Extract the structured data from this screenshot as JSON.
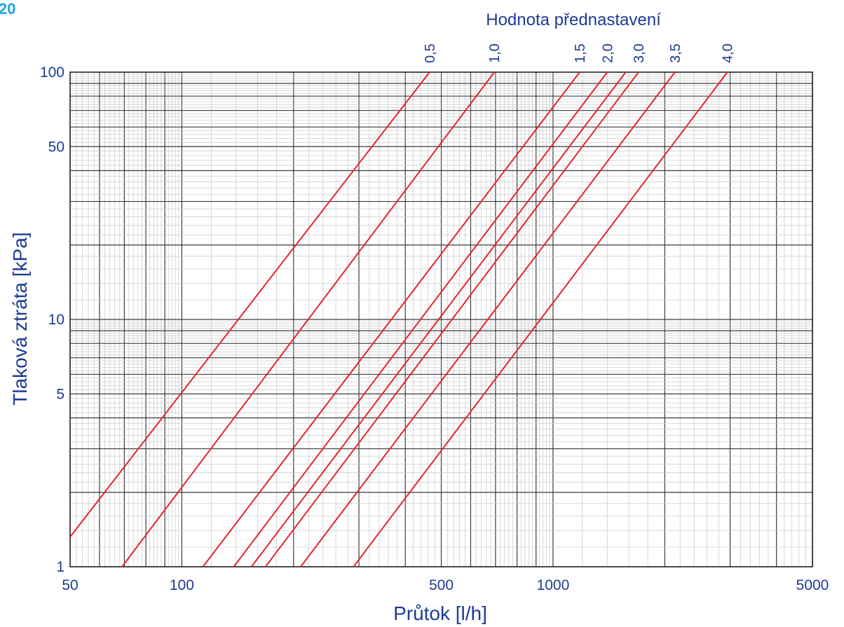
{
  "corner_label": "20",
  "chart_data": {
    "type": "line",
    "title": "Hodnota přednastavení",
    "xlabel": "Průtok  [l/h]",
    "ylabel": "Tlaková ztráta  [kPa]",
    "xscale": "log",
    "yscale": "log",
    "xlim": [
      50,
      5000
    ],
    "ylim": [
      1,
      100
    ],
    "x_ticks": [
      {
        "value": 50,
        "label": "50"
      },
      {
        "value": 100,
        "label": "100"
      },
      {
        "value": 500,
        "label": "500"
      },
      {
        "value": 1000,
        "label": "1000"
      },
      {
        "value": 5000,
        "label": "5000"
      }
    ],
    "y_ticks": [
      {
        "value": 1,
        "label": "1"
      },
      {
        "value": 5,
        "label": "5"
      },
      {
        "value": 10,
        "label": "10"
      },
      {
        "value": 50,
        "label": "50"
      },
      {
        "value": 100,
        "label": "100"
      }
    ],
    "grid": true,
    "line_color": "#e3262d",
    "text_color": "#1f3b93",
    "series": [
      {
        "name": "0,5",
        "points": [
          [
            50,
            1.32
          ],
          [
            465,
            100
          ]
        ]
      },
      {
        "name": "1,0",
        "points": [
          [
            69,
            1.0
          ],
          [
            695,
            100
          ]
        ]
      },
      {
        "name": "1,5",
        "points": [
          [
            114,
            1.0
          ],
          [
            1180,
            100
          ]
        ]
      },
      {
        "name": "2,0",
        "points": [
          [
            138,
            1.0
          ],
          [
            1400,
            100
          ]
        ]
      },
      {
        "name": "3,0",
        "points": [
          [
            154,
            1.0
          ],
          [
            1570,
            100
          ]
        ]
      },
      {
        "name": "3,0",
        "points": [
          [
            168,
            1.0
          ],
          [
            1700,
            100
          ]
        ]
      },
      {
        "name": "3,5",
        "points": [
          [
            209,
            1.0
          ],
          [
            2130,
            100
          ]
        ]
      },
      {
        "name": "4,0",
        "points": [
          [
            290,
            1.0
          ],
          [
            2950,
            100
          ]
        ]
      }
    ],
    "top_labels": [
      {
        "label": "0,5",
        "x": 465
      },
      {
        "label": "1,0",
        "x": 695
      },
      {
        "label": "1,5",
        "x": 1180
      },
      {
        "label": "2,0",
        "x": 1400
      },
      {
        "label": "3,0",
        "x": 1700
      },
      {
        "label": "3,5",
        "x": 2130
      },
      {
        "label": "4,0",
        "x": 2950
      }
    ]
  }
}
